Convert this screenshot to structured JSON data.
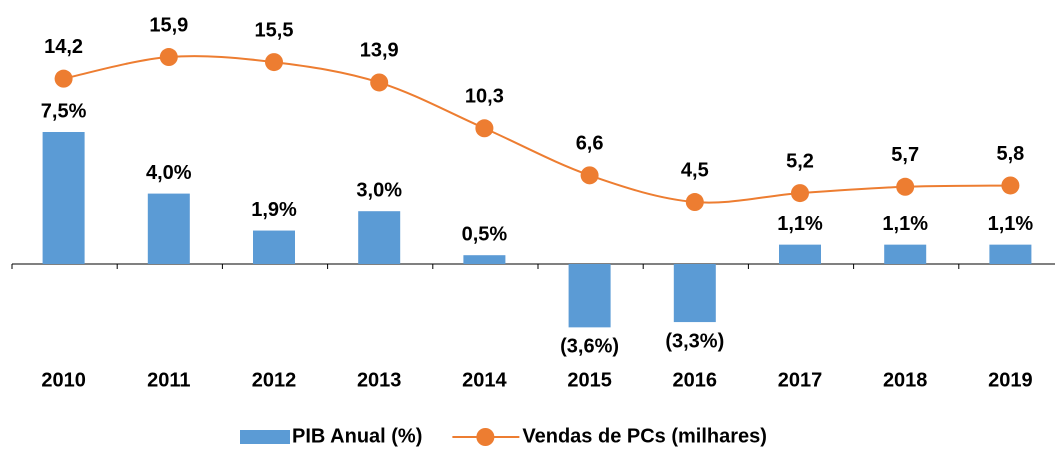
{
  "chart_data": {
    "type": "bar-line",
    "categories": [
      "2010",
      "2011",
      "2012",
      "2013",
      "2014",
      "2015",
      "2016",
      "2017",
      "2018",
      "2019"
    ],
    "series": [
      {
        "name": "PIB Anual (%)",
        "type": "bar",
        "color": "#5b9bd5",
        "values": [
          7.5,
          4.0,
          1.9,
          3.0,
          0.5,
          -3.6,
          -3.3,
          1.1,
          1.1,
          1.1
        ],
        "value_labels": [
          "7,5%",
          "4,0%",
          "1,9%",
          "3,0%",
          "0,5%",
          "(3,6%)",
          "(3,3%)",
          "1,1%",
          "1,1%",
          "1,1%"
        ]
      },
      {
        "name": "Vendas de PCs (milhares)",
        "type": "line",
        "axis": "y2",
        "color": "#ed7d31",
        "values": [
          14.2,
          15.9,
          15.5,
          13.9,
          10.3,
          6.6,
          4.5,
          5.2,
          5.7,
          5.8
        ],
        "value_labels": [
          "14,2",
          "15,9",
          "15,5",
          "13,9",
          "10,3",
          "6,6",
          "4,5",
          "5,2",
          "5,7",
          "5,8"
        ]
      }
    ],
    "ylim": [
      -4.5,
      14
    ],
    "y2lim": [
      -6.6,
      19
    ],
    "legend": "bottom"
  }
}
